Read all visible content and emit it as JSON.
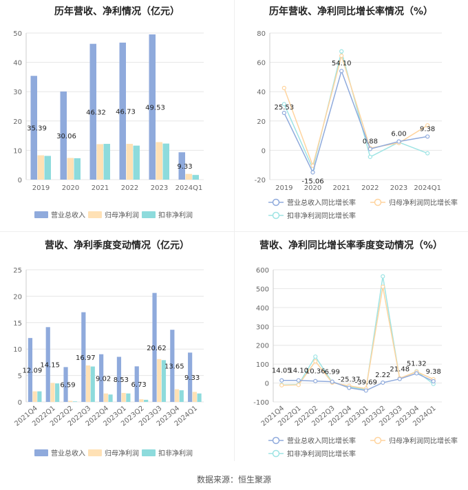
{
  "source": "数据来源：恒生聚源",
  "colors": {
    "blue": "#8faadc",
    "orange": "#ffe1b5",
    "teal": "#8ddbdc",
    "blue_line": "#8faadc",
    "orange_line": "#ffd49e",
    "teal_line": "#9ee4e4"
  },
  "chart_data": [
    {
      "type": "bar",
      "title": "历年营收、净利情况（亿元）",
      "categories": [
        "2019",
        "2020",
        "2021",
        "2022",
        "2023",
        "2024Q1"
      ],
      "ylim": [
        0,
        50
      ],
      "yticks": [
        0,
        10,
        20,
        30,
        40,
        50
      ],
      "series": [
        {
          "name": "营业总收入",
          "values": [
            35.39,
            30.06,
            46.32,
            46.73,
            49.53,
            9.33
          ],
          "labels": [
            "35.39",
            "30.06",
            "46.32",
            "46.73",
            "49.53",
            "9.33"
          ]
        },
        {
          "name": "归母净利润",
          "values": [
            8.3,
            7.4,
            12.1,
            12.2,
            12.8,
            1.95
          ]
        },
        {
          "name": "扣非净利润",
          "values": [
            8.1,
            7.3,
            12.2,
            11.6,
            12.3,
            1.6
          ]
        }
      ],
      "legend": "bottom"
    },
    {
      "type": "line",
      "title": "历年营收、净利同比增长率情况（%）",
      "categories": [
        "2019",
        "2020",
        "2021",
        "2022",
        "2023",
        "2024Q1"
      ],
      "ylim": [
        -20,
        80
      ],
      "yticks": [
        -20,
        0,
        20,
        40,
        60,
        80
      ],
      "series": [
        {
          "name": "营业总收入同比增长率",
          "values": [
            25.53,
            -15.06,
            54.1,
            0.88,
            6.0,
            9.38
          ],
          "labels": [
            "25.53",
            "-15.06",
            "54.10",
            "0.88",
            "6.00",
            "9.38"
          ]
        },
        {
          "name": "归母净利润同比增长率",
          "values": [
            42.5,
            -10.5,
            64.5,
            1.5,
            5.0,
            17.0
          ]
        },
        {
          "name": "扣非净利润同比增长率",
          "values": [
            31.5,
            -12.5,
            67.5,
            -4.5,
            5.5,
            -2.0
          ]
        }
      ],
      "legend": "bottom"
    },
    {
      "type": "bar",
      "title": "营收、净利季度变动情况（亿元）",
      "categories": [
        "2021Q4",
        "2022Q1",
        "2022Q2",
        "2022Q3",
        "2022Q4",
        "2023Q1",
        "2023Q2",
        "2023Q3",
        "2023Q4",
        "2024Q1"
      ],
      "ylim": [
        0,
        25
      ],
      "yticks": [
        0,
        5,
        10,
        15,
        20,
        25
      ],
      "series": [
        {
          "name": "营业总收入",
          "values": [
            12.09,
            14.15,
            6.59,
            16.97,
            9.02,
            8.53,
            6.73,
            20.62,
            13.65,
            9.33
          ],
          "labels": [
            "12.09",
            "14.15",
            "6.59",
            "16.97",
            "9.02",
            "8.53",
            "6.73",
            "20.62",
            "13.65",
            "9.33"
          ]
        },
        {
          "name": "归母净利润",
          "values": [
            2.0,
            3.6,
            0.2,
            6.9,
            1.6,
            1.7,
            0.5,
            8.1,
            2.4,
            1.9
          ]
        },
        {
          "name": "扣非净利润",
          "values": [
            2.0,
            3.5,
            0.1,
            6.7,
            1.4,
            1.6,
            0.4,
            7.9,
            2.2,
            1.6
          ]
        }
      ],
      "legend": "bottom"
    },
    {
      "type": "line",
      "title": "营收、净利同比增长率季度变动情况（%）",
      "categories": [
        "2021Q4",
        "2022Q1",
        "2022Q2",
        "2022Q3",
        "2022Q4",
        "2023Q1",
        "2023Q2",
        "2023Q3",
        "2023Q4",
        "2024Q1"
      ],
      "ylim": [
        -100,
        600
      ],
      "yticks": [
        -100,
        0,
        100,
        200,
        300,
        400,
        500,
        600
      ],
      "series": [
        {
          "name": "营业总收入同比增长率",
          "values": [
            14.05,
            14.1,
            10.36,
            6.99,
            -25.37,
            -39.69,
            2.22,
            21.48,
            51.32,
            9.38
          ],
          "labels": [
            "14.05",
            "14.10",
            "10.36",
            "6.99",
            "-25.37",
            "-39.69",
            "2.22",
            "21.48",
            "51.32",
            "9.38"
          ]
        },
        {
          "name": "归母净利润同比增长率",
          "values": [
            -12,
            -10,
            115,
            2,
            -15,
            -30,
            510,
            25,
            60,
            20
          ]
        },
        {
          "name": "扣非净利润同比增长率",
          "values": [
            -10,
            -8,
            140,
            4,
            -20,
            -35,
            565,
            22,
            62,
            -5
          ]
        }
      ],
      "legend": "bottom"
    }
  ]
}
